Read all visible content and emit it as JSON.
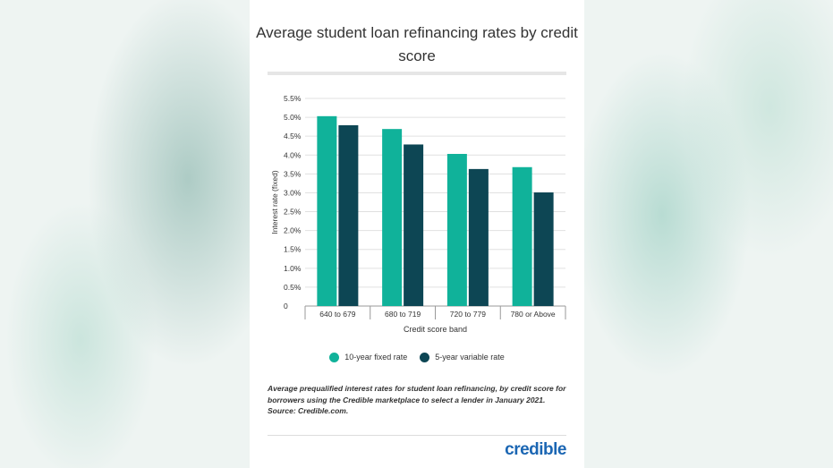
{
  "chart_data": {
    "type": "bar",
    "title": "Average student loan refinancing rates by credit score",
    "xlabel": "Credit score band",
    "ylabel": "Interest rate (fixed)",
    "categories": [
      "640 to 679",
      "680 to 719",
      "720 to 779",
      "780 or Above"
    ],
    "series": [
      {
        "name": "10-year fixed rate",
        "color": "#10b29a",
        "values": [
          5.03,
          4.69,
          4.03,
          3.68
        ]
      },
      {
        "name": "5-year variable rate",
        "color": "#0d4654",
        "values": [
          4.79,
          4.28,
          3.63,
          3.01
        ]
      }
    ],
    "ylim": [
      0,
      5.5
    ],
    "yticks": [
      "0",
      "0.5%",
      "1.0%",
      "1.5%",
      "2.0%",
      "2.5%",
      "3.0%",
      "3.5%",
      "4.0%",
      "4.5%",
      "5.0%",
      "5.5%"
    ],
    "grid": true,
    "legend": "bottom"
  },
  "note": "Average prequalified interest rates for student loan refinancing, by credit score for borrowers using the Credible marketplace to select a lender in January 2021. Source: Credible.com.",
  "brand": "credible"
}
